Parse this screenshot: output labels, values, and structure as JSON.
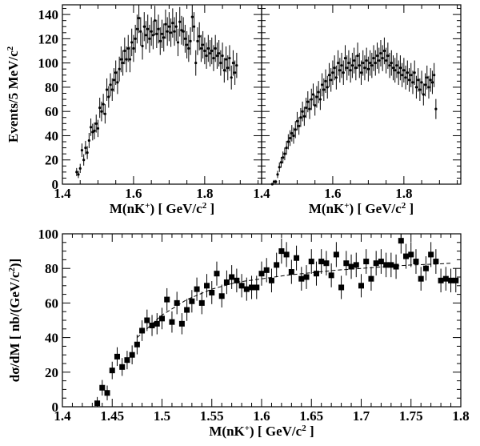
{
  "chart_data": [
    {
      "type": "scatter",
      "panel": "top-left",
      "xlabel": "M(nK⁺) [ GeV/c² ]",
      "ylabel": "Events/5 MeV/c²",
      "xlim": [
        1.4,
        1.96
      ],
      "ylim": [
        0,
        148
      ],
      "x_ticks": [
        "1.4",
        "1.6",
        "1.8"
      ],
      "y_ticks": [
        "0",
        "20",
        "40",
        "60",
        "80",
        "100",
        "120",
        "140"
      ],
      "marker": "dot with error bars",
      "series": [
        {
          "points": [
            [
              1.44,
              10
            ],
            [
              1.445,
              8
            ],
            [
              1.45,
              13
            ],
            [
              1.455,
              28
            ],
            [
              1.46,
              20
            ],
            [
              1.465,
              30
            ],
            [
              1.47,
              26
            ],
            [
              1.475,
              36
            ],
            [
              1.48,
              47
            ],
            [
              1.485,
              43
            ],
            [
              1.49,
              44
            ],
            [
              1.495,
              50
            ],
            [
              1.5,
              46
            ],
            [
              1.505,
              63
            ],
            [
              1.51,
              60
            ],
            [
              1.515,
              66
            ],
            [
              1.52,
              58
            ],
            [
              1.525,
              78
            ],
            [
              1.53,
              72
            ],
            [
              1.535,
              82
            ],
            [
              1.54,
              78
            ],
            [
              1.545,
              86
            ],
            [
              1.55,
              92
            ],
            [
              1.555,
              84
            ],
            [
              1.56,
              95
            ],
            [
              1.565,
              103
            ],
            [
              1.57,
              100
            ],
            [
              1.575,
              110
            ],
            [
              1.58,
              103
            ],
            [
              1.585,
              112
            ],
            [
              1.59,
              103
            ],
            [
              1.595,
              117
            ],
            [
              1.6,
              112
            ],
            [
              1.605,
              120
            ],
            [
              1.61,
              128
            ],
            [
              1.615,
              137
            ],
            [
              1.62,
              126
            ],
            [
              1.625,
              114
            ],
            [
              1.63,
              130
            ],
            [
              1.635,
              123
            ],
            [
              1.64,
              128
            ],
            [
              1.645,
              120
            ],
            [
              1.65,
              126
            ],
            [
              1.655,
              123
            ],
            [
              1.66,
              135
            ],
            [
              1.665,
              124
            ],
            [
              1.67,
              128
            ],
            [
              1.675,
              118
            ],
            [
              1.68,
              124
            ],
            [
              1.685,
              121
            ],
            [
              1.69,
              132
            ],
            [
              1.695,
              126
            ],
            [
              1.7,
              130
            ],
            [
              1.705,
              125
            ],
            [
              1.71,
              133
            ],
            [
              1.715,
              126
            ],
            [
              1.72,
              130
            ],
            [
              1.725,
              117
            ],
            [
              1.73,
              134
            ],
            [
              1.735,
              127
            ],
            [
              1.74,
              126
            ],
            [
              1.745,
              120
            ],
            [
              1.75,
              115
            ],
            [
              1.755,
              112
            ],
            [
              1.76,
              118
            ],
            [
              1.765,
              138
            ],
            [
              1.77,
              130
            ],
            [
              1.775,
              100
            ],
            [
              1.78,
              118
            ],
            [
              1.785,
              122
            ],
            [
              1.79,
              112
            ],
            [
              1.795,
              115
            ],
            [
              1.8,
              110
            ],
            [
              1.805,
              106
            ],
            [
              1.81,
              112
            ],
            [
              1.815,
              108
            ],
            [
              1.82,
              110
            ],
            [
              1.825,
              104
            ],
            [
              1.83,
              112
            ],
            [
              1.835,
              106
            ],
            [
              1.84,
              108
            ],
            [
              1.845,
              100
            ],
            [
              1.85,
              106
            ],
            [
              1.855,
              94
            ],
            [
              1.86,
              103
            ],
            [
              1.865,
              96
            ],
            [
              1.87,
              104
            ],
            [
              1.875,
              88
            ],
            [
              1.88,
              100
            ],
            [
              1.885,
              92
            ],
            [
              1.89,
              98
            ]
          ]
        }
      ]
    },
    {
      "type": "scatter",
      "panel": "top-right",
      "xlabel": "M(nK⁺) [ GeV/c² ]",
      "ylabel": "",
      "xlim": [
        1.4,
        1.96
      ],
      "ylim": [
        0,
        148
      ],
      "x_ticks": [
        "1.4",
        "1.6",
        "1.8"
      ],
      "marker": "dot with error bars",
      "series": [
        {
          "points": [
            [
              1.43,
              0
            ],
            [
              1.435,
              2
            ],
            [
              1.44,
              2
            ],
            [
              1.445,
              8
            ],
            [
              1.45,
              14
            ],
            [
              1.455,
              18
            ],
            [
              1.46,
              22
            ],
            [
              1.465,
              25
            ],
            [
              1.47,
              30
            ],
            [
              1.475,
              35
            ],
            [
              1.48,
              38
            ],
            [
              1.485,
              42
            ],
            [
              1.49,
              40
            ],
            [
              1.495,
              45
            ],
            [
              1.5,
              52
            ],
            [
              1.505,
              48
            ],
            [
              1.51,
              55
            ],
            [
              1.515,
              60
            ],
            [
              1.52,
              56
            ],
            [
              1.525,
              63
            ],
            [
              1.53,
              68
            ],
            [
              1.535,
              62
            ],
            [
              1.54,
              70
            ],
            [
              1.545,
              74
            ],
            [
              1.55,
              65
            ],
            [
              1.555,
              72
            ],
            [
              1.56,
              76
            ],
            [
              1.565,
              70
            ],
            [
              1.57,
              82
            ],
            [
              1.575,
              78
            ],
            [
              1.58,
              85
            ],
            [
              1.585,
              80
            ],
            [
              1.59,
              90
            ],
            [
              1.595,
              86
            ],
            [
              1.6,
              92
            ],
            [
              1.605,
              96
            ],
            [
              1.61,
              88
            ],
            [
              1.615,
              100
            ],
            [
              1.62,
              94
            ],
            [
              1.625,
              98
            ],
            [
              1.63,
              92
            ],
            [
              1.635,
              104
            ],
            [
              1.64,
              96
            ],
            [
              1.645,
              100
            ],
            [
              1.65,
              94
            ],
            [
              1.655,
              98
            ],
            [
              1.66,
              102
            ],
            [
              1.665,
              96
            ],
            [
              1.67,
              106
            ],
            [
              1.675,
              98
            ],
            [
              1.68,
              92
            ],
            [
              1.685,
              100
            ],
            [
              1.69,
              96
            ],
            [
              1.695,
              102
            ],
            [
              1.7,
              95
            ],
            [
              1.705,
              100
            ],
            [
              1.71,
              98
            ],
            [
              1.715,
              104
            ],
            [
              1.72,
              100
            ],
            [
              1.725,
              106
            ],
            [
              1.73,
              102
            ],
            [
              1.735,
              108
            ],
            [
              1.74,
              104
            ],
            [
              1.745,
              110
            ],
            [
              1.75,
              102
            ],
            [
              1.755,
              106
            ],
            [
              1.76,
              98
            ],
            [
              1.765,
              100
            ],
            [
              1.77,
              96
            ],
            [
              1.775,
              94
            ],
            [
              1.78,
              98
            ],
            [
              1.785,
              92
            ],
            [
              1.79,
              96
            ],
            [
              1.795,
              90
            ],
            [
              1.8,
              94
            ],
            [
              1.805,
              88
            ],
            [
              1.81,
              92
            ],
            [
              1.815,
              86
            ],
            [
              1.82,
              90
            ],
            [
              1.825,
              84
            ],
            [
              1.83,
              92
            ],
            [
              1.835,
              80
            ],
            [
              1.84,
              86
            ],
            [
              1.845,
              78
            ],
            [
              1.85,
              84
            ],
            [
              1.855,
              74
            ],
            [
              1.86,
              82
            ],
            [
              1.865,
              88
            ],
            [
              1.87,
              80
            ],
            [
              1.875,
              86
            ],
            [
              1.88,
              84
            ],
            [
              1.885,
              90
            ],
            [
              1.89,
              62
            ]
          ]
        }
      ]
    },
    {
      "type": "scatter",
      "panel": "bottom",
      "xlabel": "M(nK⁺) [ GeV/c² ]",
      "ylabel": "dσ/dM [ nb/(GeV/c²)]",
      "xlim": [
        1.4,
        1.8
      ],
      "ylim": [
        0,
        100
      ],
      "x_ticks": [
        "1.4",
        "1.45",
        "1.5",
        "1.55",
        "1.6",
        "1.65",
        "1.7",
        "1.75",
        "1.8"
      ],
      "y_ticks": [
        "0",
        "20",
        "40",
        "60",
        "80",
        "100"
      ],
      "marker": "filled square with error bars",
      "series": [
        {
          "points": [
            [
              1.435,
              2
            ],
            [
              1.44,
              11
            ],
            [
              1.445,
              8
            ],
            [
              1.45,
              21
            ],
            [
              1.455,
              29
            ],
            [
              1.46,
              23
            ],
            [
              1.465,
              27
            ],
            [
              1.47,
              30
            ],
            [
              1.475,
              36
            ],
            [
              1.48,
              44
            ],
            [
              1.485,
              50
            ],
            [
              1.49,
              47
            ],
            [
              1.495,
              48
            ],
            [
              1.5,
              51
            ],
            [
              1.505,
              62
            ],
            [
              1.51,
              49
            ],
            [
              1.515,
              60
            ],
            [
              1.52,
              48
            ],
            [
              1.525,
              56
            ],
            [
              1.53,
              61
            ],
            [
              1.535,
              68
            ],
            [
              1.54,
              60
            ],
            [
              1.545,
              70
            ],
            [
              1.55,
              66
            ],
            [
              1.555,
              77
            ],
            [
              1.56,
              64
            ],
            [
              1.565,
              72
            ],
            [
              1.57,
              75
            ],
            [
              1.575,
              73
            ],
            [
              1.58,
              70
            ],
            [
              1.585,
              68
            ],
            [
              1.59,
              69
            ],
            [
              1.595,
              69
            ],
            [
              1.6,
              77
            ],
            [
              1.605,
              79
            ],
            [
              1.61,
              73
            ],
            [
              1.615,
              82
            ],
            [
              1.62,
              90
            ],
            [
              1.625,
              88
            ],
            [
              1.63,
              78
            ],
            [
              1.635,
              86
            ],
            [
              1.64,
              74
            ],
            [
              1.645,
              75
            ],
            [
              1.65,
              84
            ],
            [
              1.655,
              77
            ],
            [
              1.66,
              84
            ],
            [
              1.665,
              83
            ],
            [
              1.67,
              76
            ],
            [
              1.675,
              88
            ],
            [
              1.68,
              69
            ],
            [
              1.685,
              83
            ],
            [
              1.69,
              81
            ],
            [
              1.695,
              82
            ],
            [
              1.7,
              70
            ],
            [
              1.705,
              84
            ],
            [
              1.71,
              74
            ],
            [
              1.715,
              83
            ],
            [
              1.72,
              84
            ],
            [
              1.725,
              82
            ],
            [
              1.73,
              82
            ],
            [
              1.735,
              81
            ],
            [
              1.74,
              96
            ],
            [
              1.745,
              87
            ],
            [
              1.75,
              88
            ],
            [
              1.755,
              84
            ],
            [
              1.76,
              74
            ],
            [
              1.765,
              80
            ],
            [
              1.77,
              88
            ],
            [
              1.775,
              84
            ],
            [
              1.78,
              73
            ],
            [
              1.785,
              74
            ],
            [
              1.79,
              73
            ],
            [
              1.795,
              73
            ]
          ]
        }
      ],
      "fit_curve": [
        [
          1.475,
          40
        ],
        [
          1.5,
          53
        ],
        [
          1.525,
          62
        ],
        [
          1.55,
          68
        ],
        [
          1.575,
          72
        ],
        [
          1.6,
          74
        ],
        [
          1.625,
          76
        ],
        [
          1.65,
          77.5
        ],
        [
          1.675,
          79
        ],
        [
          1.7,
          80
        ],
        [
          1.725,
          81
        ],
        [
          1.75,
          82
        ],
        [
          1.775,
          82.5
        ],
        [
          1.79,
          83
        ]
      ]
    }
  ]
}
